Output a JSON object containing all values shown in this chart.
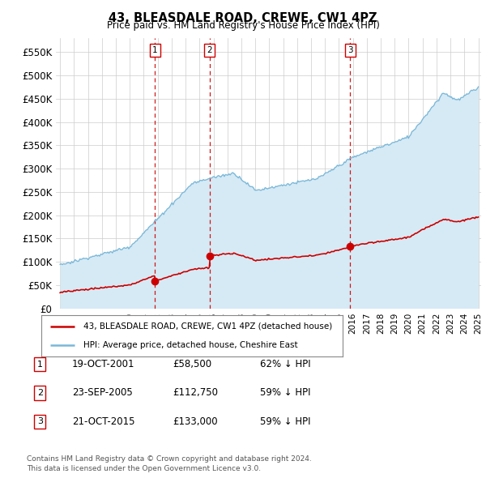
{
  "title": "43, BLEASDALE ROAD, CREWE, CW1 4PZ",
  "subtitle": "Price paid vs. HM Land Registry's House Price Index (HPI)",
  "x_start_year": 1995,
  "x_end_year": 2025,
  "ylim": [
    0,
    580000
  ],
  "yticks": [
    0,
    50000,
    100000,
    150000,
    200000,
    250000,
    300000,
    350000,
    400000,
    450000,
    500000,
    550000
  ],
  "ytick_labels": [
    "£0",
    "£50K",
    "£100K",
    "£150K",
    "£200K",
    "£250K",
    "£300K",
    "£350K",
    "£400K",
    "£450K",
    "£500K",
    "£550K"
  ],
  "hpi_color": "#7ab8d9",
  "hpi_fill_color": "#d6eaf5",
  "price_color": "#cc0000",
  "vline_color": "#cc0000",
  "background_color": "#ffffff",
  "grid_color": "#cccccc",
  "sale_points": [
    {
      "year": 2001.8,
      "price": 58500,
      "label": "1"
    },
    {
      "year": 2005.73,
      "price": 112750,
      "label": "2"
    },
    {
      "year": 2015.8,
      "price": 133000,
      "label": "3"
    }
  ],
  "table_rows": [
    {
      "num": "1",
      "date": "19-OCT-2001",
      "price": "£58,500",
      "hpi": "62% ↓ HPI"
    },
    {
      "num": "2",
      "date": "23-SEP-2005",
      "price": "£112,750",
      "hpi": "59% ↓ HPI"
    },
    {
      "num": "3",
      "date": "21-OCT-2015",
      "price": "£133,000",
      "hpi": "59% ↓ HPI"
    }
  ],
  "legend_line1": "43, BLEASDALE ROAD, CREWE, CW1 4PZ (detached house)",
  "legend_line2": "HPI: Average price, detached house, Cheshire East",
  "footer": "Contains HM Land Registry data © Crown copyright and database right 2024.\nThis data is licensed under the Open Government Licence v3.0."
}
